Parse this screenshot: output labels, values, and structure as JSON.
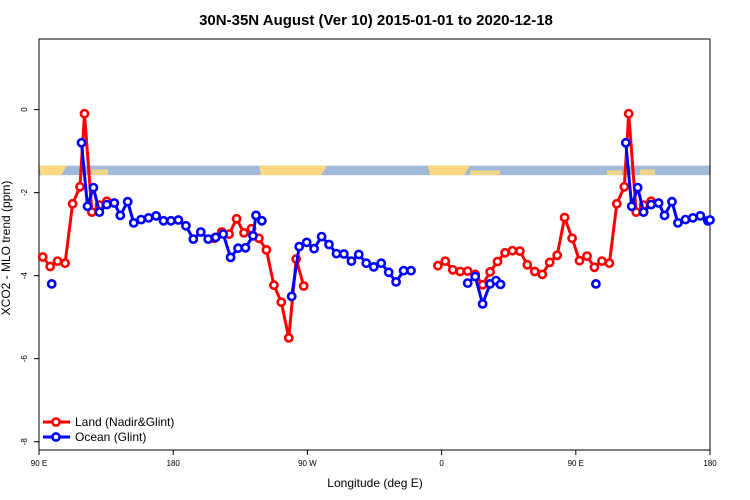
{
  "chart_data": {
    "type": "line",
    "title": "30N-35N August (Ver 10)   2015-01-01 to 2020-12-18",
    "xlabel": "Longitude (deg E)",
    "ylabel": "XCO2 - MLO trend (ppm)",
    "xlim": [
      90,
      540
    ],
    "ylim": [
      -8.2,
      1.7
    ],
    "x_ticks": [
      90,
      180,
      270,
      360,
      450,
      540
    ],
    "x_tick_labels": [
      "90 E",
      "180",
      "90 W",
      "0",
      "90 E",
      "180"
    ],
    "y_ticks": [
      0,
      -2,
      -4,
      -6,
      -8
    ],
    "y_tick_labels": [
      "0",
      "-2",
      "-4",
      "-6",
      "-8"
    ],
    "grid": false,
    "legend_position": "bottom-left",
    "series": [
      {
        "name": "Land (Nadir&Glint)",
        "color": "#ff0000",
        "segments": [
          [
            [
              92.5,
              -3.55
            ],
            [
              97.5,
              -3.78
            ],
            [
              102.5,
              -3.65
            ],
            [
              107.5,
              -3.7
            ],
            [
              112.5,
              -2.27
            ],
            [
              117.5,
              -1.86
            ],
            [
              120.5,
              -0.1
            ],
            [
              125.5,
              -2.47
            ],
            [
              130.5,
              -2.3
            ],
            [
              135.5,
              -2.21
            ]
          ],
          [
            [
              207.5,
              -3.1
            ],
            [
              212.5,
              -2.95
            ],
            [
              217.5,
              -3.0
            ],
            [
              222.5,
              -2.63
            ],
            [
              227.5,
              -2.97
            ],
            [
              232.5,
              -2.87
            ],
            [
              237.5,
              -3.1
            ],
            [
              242.5,
              -3.38
            ],
            [
              247.5,
              -4.23
            ],
            [
              252.5,
              -4.64
            ],
            [
              257.5,
              -5.5
            ],
            [
              262.5,
              -3.6
            ],
            [
              267.5,
              -4.25
            ]
          ],
          [
            [
              357.5,
              -3.76
            ],
            [
              362.5,
              -3.65
            ],
            [
              367.5,
              -3.86
            ],
            [
              372.5,
              -3.9
            ],
            [
              377.5,
              -3.89
            ],
            [
              382.5,
              -3.97
            ],
            [
              387.5,
              -4.22
            ],
            [
              392.5,
              -3.91
            ],
            [
              397.5,
              -3.66
            ],
            [
              402.5,
              -3.45
            ],
            [
              407.5,
              -3.4
            ],
            [
              412.5,
              -3.41
            ],
            [
              417.5,
              -3.74
            ],
            [
              422.5,
              -3.9
            ],
            [
              427.5,
              -3.97
            ],
            [
              432.5,
              -3.68
            ],
            [
              437.5,
              -3.51
            ],
            [
              442.5,
              -2.6
            ],
            [
              447.5,
              -3.1
            ],
            [
              452.5,
              -3.64
            ],
            [
              457.5,
              -3.53
            ],
            [
              462.5,
              -3.8
            ],
            [
              467.5,
              -3.65
            ],
            [
              472.5,
              -3.7
            ],
            [
              477.5,
              -2.27
            ],
            [
              482.5,
              -1.86
            ],
            [
              485.5,
              -0.1
            ],
            [
              490.5,
              -2.47
            ],
            [
              495.5,
              -2.3
            ],
            [
              500.5,
              -2.21
            ]
          ]
        ]
      },
      {
        "name": "Ocean (Glint)",
        "color": "#0000ff",
        "segments": [
          [
            [
              98.5,
              -4.2
            ]
          ],
          [
            [
              118.5,
              -0.8
            ],
            [
              122.5,
              -2.33
            ],
            [
              126.5,
              -1.88
            ],
            [
              130.5,
              -2.47
            ],
            [
              135.5,
              -2.29
            ],
            [
              140.5,
              -2.25
            ],
            [
              144.5,
              -2.55
            ],
            [
              149.5,
              -2.22
            ],
            [
              153.5,
              -2.73
            ],
            [
              158.5,
              -2.65
            ],
            [
              163.5,
              -2.61
            ],
            [
              168.5,
              -2.56
            ],
            [
              173.5,
              -2.68
            ],
            [
              178.5,
              -2.68
            ],
            [
              183.5,
              -2.66
            ],
            [
              188.5,
              -2.8
            ],
            [
              193.5,
              -3.12
            ],
            [
              198.5,
              -2.95
            ],
            [
              203.5,
              -3.12
            ],
            [
              208.5,
              -3.08
            ],
            [
              213.5,
              -3.0
            ],
            [
              218.5,
              -3.56
            ],
            [
              223.5,
              -3.34
            ],
            [
              228.5,
              -3.33
            ],
            [
              233.5,
              -3.04
            ],
            [
              235.5,
              -2.55
            ],
            [
              239.5,
              -2.68
            ]
          ],
          [
            [
              259.5,
              -4.5
            ],
            [
              264.5,
              -3.3
            ],
            [
              269.5,
              -3.2
            ],
            [
              274.5,
              -3.35
            ],
            [
              279.5,
              -3.06
            ],
            [
              284.5,
              -3.25
            ],
            [
              289.5,
              -3.47
            ],
            [
              294.5,
              -3.48
            ],
            [
              299.5,
              -3.65
            ],
            [
              304.5,
              -3.49
            ],
            [
              309.5,
              -3.7
            ],
            [
              314.5,
              -3.79
            ],
            [
              319.5,
              -3.7
            ],
            [
              324.5,
              -3.92
            ],
            [
              329.5,
              -4.15
            ],
            [
              334.5,
              -3.88
            ],
            [
              339.5,
              -3.88
            ]
          ],
          [
            [
              377.5,
              -4.18
            ],
            [
              382.5,
              -4.02
            ],
            [
              387.5,
              -4.68
            ],
            [
              392.5,
              -4.2
            ],
            [
              396.5,
              -4.12
            ],
            [
              399.5,
              -4.21
            ]
          ],
          [
            [
              463.5,
              -4.2
            ]
          ],
          [
            [
              483.5,
              -0.8
            ],
            [
              487.5,
              -2.33
            ],
            [
              491.5,
              -1.88
            ],
            [
              495.5,
              -2.47
            ],
            [
              500.5,
              -2.29
            ],
            [
              505.5,
              -2.25
            ],
            [
              509.5,
              -2.55
            ],
            [
              514.5,
              -2.22
            ],
            [
              518.5,
              -2.73
            ],
            [
              523.5,
              -2.65
            ],
            [
              528.5,
              -2.61
            ],
            [
              533.5,
              -2.56
            ],
            [
              538.5,
              -2.68
            ],
            [
              540,
              -2.66
            ]
          ]
        ]
      }
    ],
    "band": {
      "y_top": -1.35,
      "y_bottom": -1.58,
      "ocean_color": "#a3b9d9",
      "land_color": "#fcd97f"
    }
  }
}
